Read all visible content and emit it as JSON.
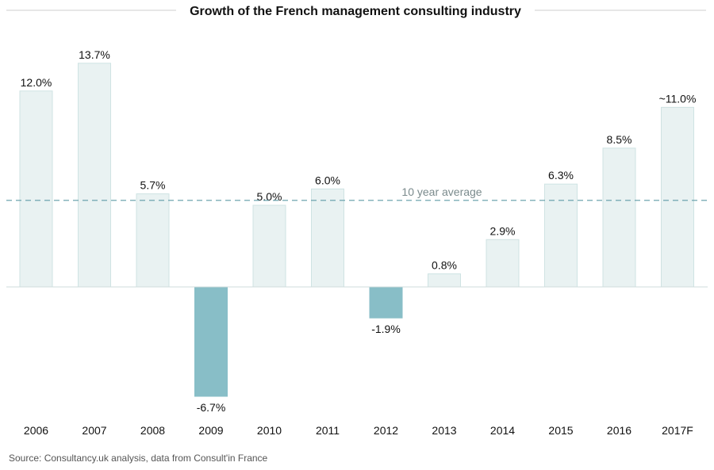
{
  "chart_data": {
    "type": "bar",
    "title": "Growth of the French management consulting industry",
    "categories": [
      "2006",
      "2007",
      "2008",
      "2009",
      "2010",
      "2011",
      "2012",
      "2013",
      "2014",
      "2015",
      "2016",
      "2017F"
    ],
    "values": [
      12.0,
      13.7,
      5.7,
      -6.7,
      5.0,
      6.0,
      -1.9,
      0.8,
      2.9,
      6.3,
      8.5,
      11.0
    ],
    "value_labels": [
      "12.0%",
      "13.7%",
      "5.7%",
      "-6.7%",
      "5.0%",
      "6.0%",
      "-1.9%",
      "0.8%",
      "2.9%",
      "6.3%",
      "8.5%",
      "~11.0%"
    ],
    "reference_line": {
      "label": "10 year average",
      "value": 5.3
    },
    "ylim": [
      -7,
      14
    ],
    "xlabel": "",
    "ylabel": "",
    "grid": false,
    "colors": {
      "positive_fill": "#e9f2f2",
      "positive_stroke": "#cfe3e3",
      "negative_fill": "#88bec7",
      "average_line": "#5f9aa6",
      "average_label": "#7a8a8c",
      "axis": "#cfdcdc"
    }
  },
  "source": "Source: Consultancy.uk analysis, data from Consult'in France"
}
